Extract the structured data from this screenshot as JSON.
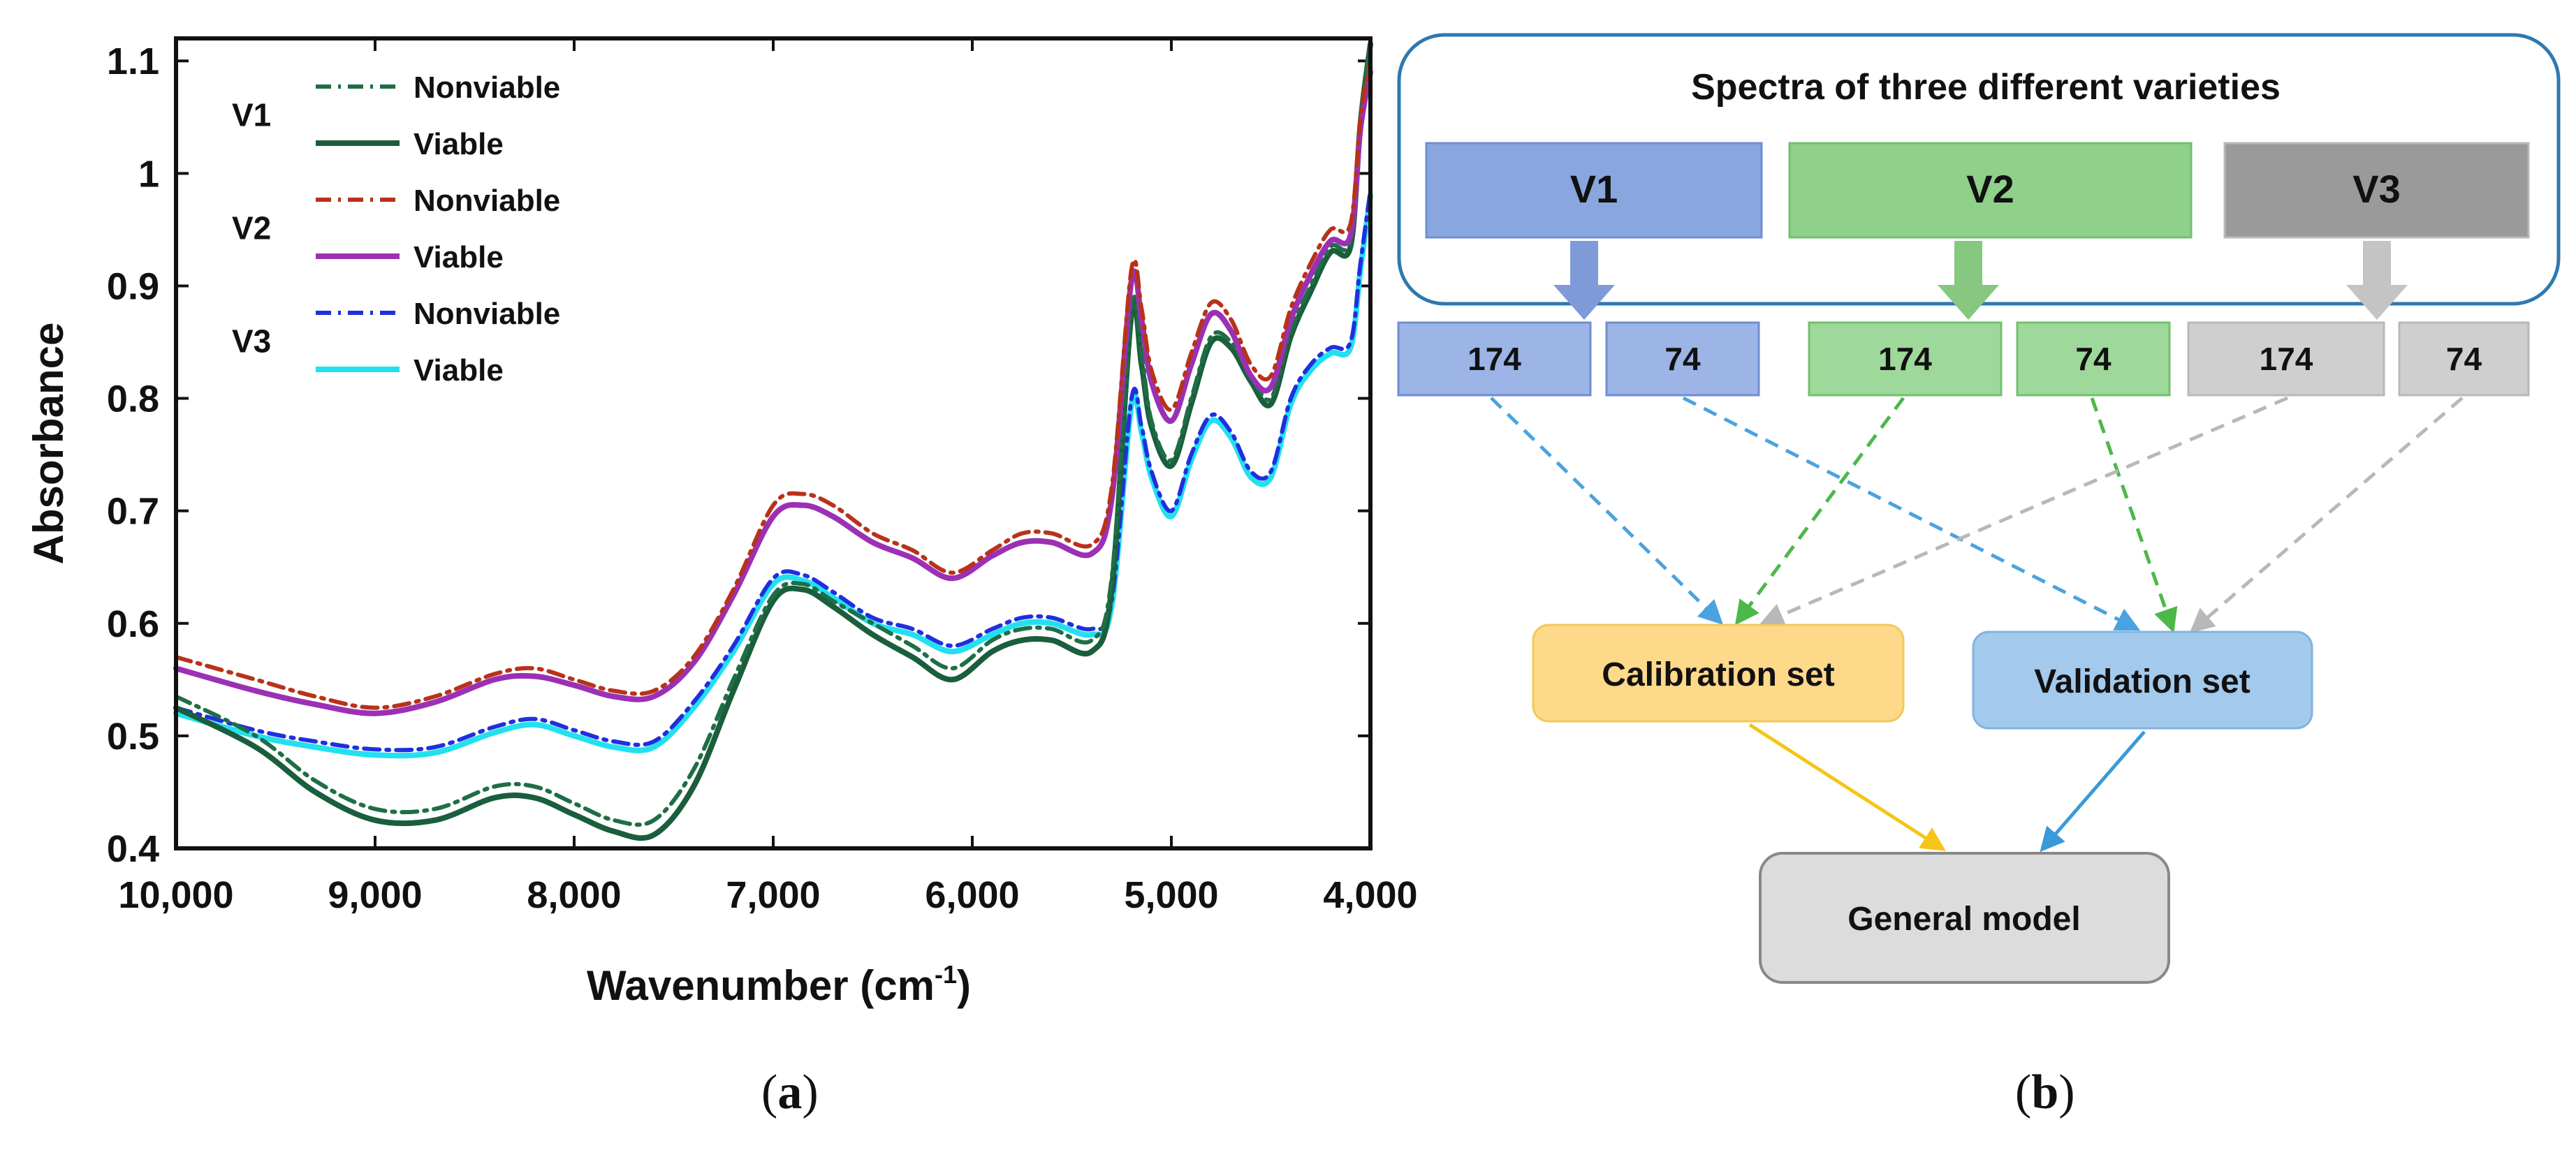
{
  "panels": [
    {
      "prefix": "(",
      "letter": "a",
      "suffix": ")"
    },
    {
      "prefix": "(",
      "letter": "b",
      "suffix": ")"
    }
  ],
  "chart_data": {
    "type": "line",
    "xlabel": "Wavenumber (cm",
    "xlabel_sup": "-1",
    "xlabel_suffix": ")",
    "ylabel": "Absorbance",
    "xlim": [
      10000,
      4000
    ],
    "ylim": [
      0.4,
      1.12
    ],
    "x_reversed": true,
    "xticks": [
      10000,
      9000,
      8000,
      7000,
      6000,
      5000,
      4000
    ],
    "xtick_labels": [
      "10,000",
      "9,000",
      "8,000",
      "7,000",
      "6,000",
      "5,000",
      "4,000"
    ],
    "yticks": [
      0.4,
      0.5,
      0.6,
      0.7,
      0.8,
      0.9,
      1,
      1.1
    ],
    "ytick_labels": [
      "0.4",
      "0.5",
      "0.6",
      "0.7",
      "0.8",
      "0.9",
      "1",
      "1.1"
    ],
    "legend_placement": "top-left",
    "legend_groups": [
      "V1",
      "V2",
      "V3"
    ],
    "x": [
      10000,
      9600,
      9300,
      9000,
      8700,
      8400,
      8200,
      8000,
      7800,
      7600,
      7400,
      7200,
      7000,
      6850,
      6700,
      6500,
      6300,
      6100,
      5900,
      5750,
      5600,
      5400,
      5300,
      5200,
      5150,
      5100,
      5000,
      4900,
      4800,
      4700,
      4600,
      4500,
      4400,
      4300,
      4200,
      4100,
      4050,
      4000
    ],
    "series": [
      {
        "name": "Nonviable",
        "group": "V1",
        "color": "#1e6e46",
        "dash": "dashdot",
        "values": [
          0.535,
          0.5,
          0.46,
          0.435,
          0.435,
          0.455,
          0.455,
          0.44,
          0.425,
          0.425,
          0.47,
          0.55,
          0.625,
          0.635,
          0.62,
          0.6,
          0.58,
          0.56,
          0.585,
          0.595,
          0.595,
          0.585,
          0.64,
          0.88,
          0.84,
          0.78,
          0.745,
          0.8,
          0.855,
          0.85,
          0.82,
          0.8,
          0.86,
          0.9,
          0.935,
          0.94,
          1.05,
          1.12
        ]
      },
      {
        "name": "Viable",
        "group": "V1",
        "color": "#1a5e3c",
        "dash": "solid",
        "values": [
          0.525,
          0.49,
          0.45,
          0.425,
          0.425,
          0.445,
          0.445,
          0.43,
          0.415,
          0.412,
          0.455,
          0.54,
          0.62,
          0.63,
          0.615,
          0.59,
          0.57,
          0.55,
          0.575,
          0.585,
          0.585,
          0.575,
          0.63,
          0.875,
          0.83,
          0.775,
          0.74,
          0.795,
          0.85,
          0.845,
          0.815,
          0.795,
          0.855,
          0.895,
          0.93,
          0.935,
          1.045,
          1.115
        ]
      },
      {
        "name": "Nonviable",
        "group": "V2",
        "color": "#b8321a",
        "dash": "dashdot",
        "values": [
          0.57,
          0.55,
          0.535,
          0.525,
          0.535,
          0.555,
          0.56,
          0.55,
          0.54,
          0.54,
          0.57,
          0.63,
          0.705,
          0.715,
          0.705,
          0.68,
          0.665,
          0.645,
          0.665,
          0.68,
          0.68,
          0.67,
          0.72,
          0.915,
          0.88,
          0.825,
          0.79,
          0.84,
          0.885,
          0.87,
          0.83,
          0.82,
          0.88,
          0.92,
          0.95,
          0.955,
          1.05,
          1.1
        ]
      },
      {
        "name": "Viable",
        "group": "V2",
        "color": "#9b30b5",
        "dash": "solid",
        "values": [
          0.56,
          0.54,
          0.528,
          0.52,
          0.53,
          0.55,
          0.553,
          0.545,
          0.535,
          0.535,
          0.565,
          0.625,
          0.695,
          0.705,
          0.695,
          0.672,
          0.658,
          0.64,
          0.66,
          0.672,
          0.672,
          0.662,
          0.71,
          0.905,
          0.87,
          0.815,
          0.78,
          0.83,
          0.875,
          0.86,
          0.82,
          0.81,
          0.87,
          0.91,
          0.94,
          0.945,
          1.04,
          1.09
        ]
      },
      {
        "name": "Nonviable",
        "group": "V3",
        "color": "#1f2fe0",
        "dash": "dashdot",
        "values": [
          0.525,
          0.505,
          0.495,
          0.488,
          0.49,
          0.508,
          0.515,
          0.505,
          0.495,
          0.495,
          0.53,
          0.58,
          0.64,
          0.643,
          0.628,
          0.605,
          0.595,
          0.58,
          0.595,
          0.605,
          0.605,
          0.595,
          0.62,
          0.8,
          0.775,
          0.735,
          0.7,
          0.75,
          0.785,
          0.77,
          0.735,
          0.735,
          0.8,
          0.83,
          0.845,
          0.85,
          0.92,
          0.985
        ]
      },
      {
        "name": "Viable",
        "group": "V3",
        "color": "#22e0f0",
        "dash": "solid",
        "values": [
          0.52,
          0.5,
          0.49,
          0.483,
          0.485,
          0.503,
          0.51,
          0.5,
          0.49,
          0.49,
          0.525,
          0.575,
          0.635,
          0.638,
          0.623,
          0.6,
          0.59,
          0.575,
          0.59,
          0.6,
          0.6,
          0.59,
          0.615,
          0.795,
          0.77,
          0.73,
          0.695,
          0.745,
          0.78,
          0.765,
          0.73,
          0.73,
          0.795,
          0.825,
          0.84,
          0.845,
          0.915,
          0.98
        ]
      }
    ]
  },
  "diagram": {
    "title": "Spectra of three different varieties",
    "varieties": [
      {
        "label": "V1",
        "fill": "#8aa6de",
        "fill_light": "#9cb4e6",
        "stroke": "#6e8ed0",
        "arrow": "#7f9ad8",
        "text": "#111111"
      },
      {
        "label": "V2",
        "fill": "#8fd08a",
        "fill_light": "#9ed89a",
        "stroke": "#72c06c",
        "arrow": "#86c880",
        "text": "#111111"
      },
      {
        "label": "V3",
        "fill": "#9a9a9a",
        "fill_light": "#cfcfcf",
        "stroke": "#b8b8b8",
        "arrow": "#c4c4c4",
        "text": "#111111"
      }
    ],
    "split_labels": [
      "174",
      "74"
    ],
    "calibration_set": {
      "label": "Calibration set",
      "fill": "#ffd98a",
      "stroke": "#f3c85a"
    },
    "validation_set": {
      "label": "Validation set",
      "fill": "#a3c9ec",
      "stroke": "#82b3e0"
    },
    "general_model": {
      "label": "General model",
      "fill": "#dcdcdc",
      "stroke": "#888888"
    },
    "arrow_colors": {
      "v1": "#4aa3df",
      "v2": "#4cb84a",
      "v3": "#b8b8b8",
      "calibration": "#f5c518",
      "validation": "#3a9ad9"
    }
  }
}
